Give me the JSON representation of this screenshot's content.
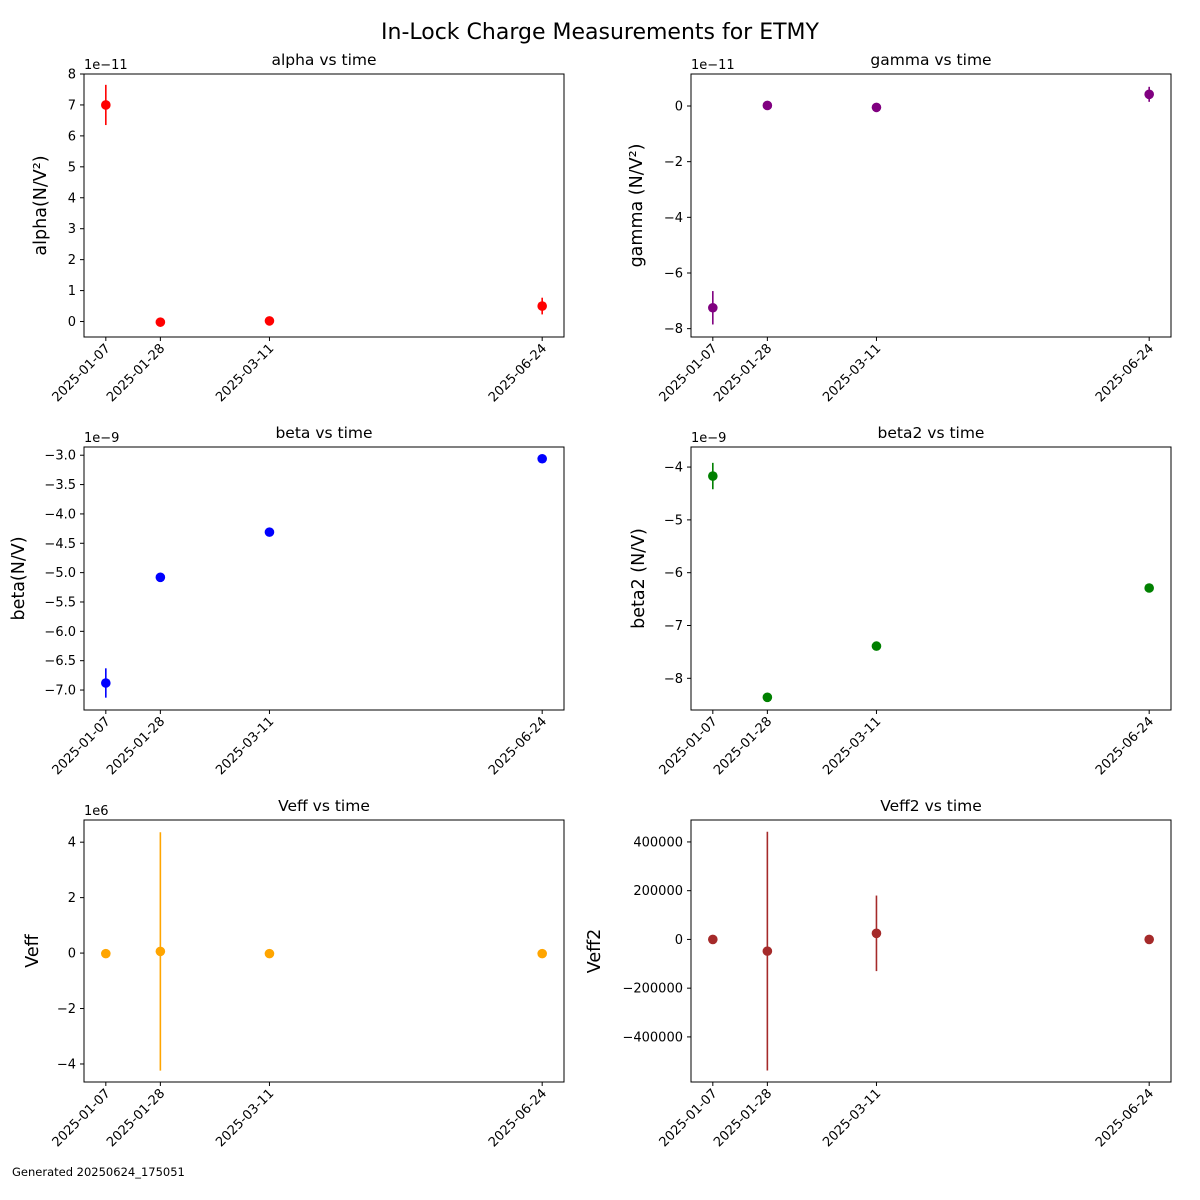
{
  "figure": {
    "title": "In-Lock Charge Measurements for ETMY",
    "footer": "Generated 20250624_175051"
  },
  "chart_data": [
    {
      "type": "scatter",
      "title": "alpha vs time",
      "ylabel": "alpha(N/V²)",
      "color": "#ff0000",
      "offset_label": "1e−11",
      "scale": 1e-11,
      "x": [
        "2025-01-07",
        "2025-01-28",
        "2025-03-11",
        "2025-06-24"
      ],
      "xticks": [
        "2025-01-07",
        "2025-01-28",
        "2025-03-11",
        "2025-06-24"
      ],
      "y": [
        7e-11,
        -2e-13,
        2e-13,
        5e-12
      ],
      "yerr": [
        6.5e-12,
        5e-13,
        5e-13,
        2.7e-12
      ],
      "ylim": [
        -5e-12,
        8e-11
      ],
      "yticks": [
        0,
        1e-11,
        2e-11,
        3e-11,
        4e-11,
        5e-11,
        6e-11,
        7e-11,
        8e-11
      ],
      "ytick_labels": [
        "0",
        "1",
        "2",
        "3",
        "4",
        "5",
        "6",
        "7",
        "8"
      ]
    },
    {
      "type": "scatter",
      "title": "gamma vs time",
      "ylabel": "gamma (N/V²)",
      "color": "#800080",
      "offset_label": "1e−11",
      "scale": 1e-11,
      "x": [
        "2025-01-07",
        "2025-01-28",
        "2025-03-11",
        "2025-06-24"
      ],
      "xticks": [
        "2025-01-07",
        "2025-01-28",
        "2025-03-11",
        "2025-06-24"
      ],
      "y": [
        -7.25e-11,
        2e-13,
        -5e-13,
        4.2e-12
      ],
      "yerr": [
        6e-12,
        5e-13,
        5e-13,
        2.7e-12
      ],
      "ylim": [
        -8.3e-11,
        1.15e-11
      ],
      "yticks": [
        -8e-11,
        -6e-11,
        -4e-11,
        -2e-11,
        0
      ],
      "ytick_labels": [
        "−8",
        "−6",
        "−4",
        "−2",
        "0"
      ]
    },
    {
      "type": "scatter",
      "title": "beta vs time",
      "ylabel": "beta(N/V)",
      "color": "#0000ff",
      "offset_label": "1e−9",
      "scale": 1e-09,
      "x": [
        "2025-01-07",
        "2025-01-28",
        "2025-03-11",
        "2025-06-24"
      ],
      "xticks": [
        "2025-01-07",
        "2025-01-28",
        "2025-03-11",
        "2025-06-24"
      ],
      "y": [
        -6.88e-09,
        -5.08e-09,
        -4.31e-09,
        -3.06e-09
      ],
      "yerr": [
        2.5e-10,
        2e-11,
        2e-11,
        2e-11
      ],
      "ylim": [
        -7.34e-09,
        -2.86e-09
      ],
      "yticks": [
        -7e-09,
        -6.5e-09,
        -6e-09,
        -5.5e-09,
        -5e-09,
        -4.5e-09,
        -4e-09,
        -3.5e-09,
        -3e-09
      ],
      "ytick_labels": [
        "−7.0",
        "−6.5",
        "−6.0",
        "−5.5",
        "−5.0",
        "−4.5",
        "−4.0",
        "−3.5",
        "−3.0"
      ]
    },
    {
      "type": "scatter",
      "title": "beta2 vs time",
      "ylabel": "beta2 (N/V)",
      "color": "#008000",
      "offset_label": "1e−9",
      "scale": 1e-09,
      "x": [
        "2025-01-07",
        "2025-01-28",
        "2025-03-11",
        "2025-06-24"
      ],
      "xticks": [
        "2025-01-07",
        "2025-01-28",
        "2025-03-11",
        "2025-06-24"
      ],
      "y": [
        -4.17e-09,
        -8.36e-09,
        -7.39e-09,
        -6.29e-09
      ],
      "yerr": [
        2.5e-10,
        2e-11,
        2e-11,
        2e-11
      ],
      "ylim": [
        -8.6e-09,
        -3.62e-09
      ],
      "yticks": [
        -8e-09,
        -7e-09,
        -6e-09,
        -5e-09,
        -4e-09
      ],
      "ytick_labels": [
        "−8",
        "−7",
        "−6",
        "−5",
        "−4"
      ]
    },
    {
      "type": "scatter",
      "title": "Veff vs time",
      "ylabel": "Veff",
      "color": "#ffa500",
      "offset_label": "1e6",
      "scale": 1000000.0,
      "x": [
        "2025-01-07",
        "2025-01-28",
        "2025-03-11",
        "2025-06-24"
      ],
      "xticks": [
        "2025-01-07",
        "2025-01-28",
        "2025-03-11",
        "2025-06-24"
      ],
      "y": [
        -20000,
        60000,
        -20000,
        -20000
      ],
      "yerr": [
        0,
        4300000,
        0,
        0
      ],
      "ylim": [
        -4650000.0,
        4800000.0
      ],
      "yticks": [
        -4000000.0,
        -2000000.0,
        0,
        2000000.0,
        4000000.0
      ],
      "ytick_labels": [
        "−4",
        "−2",
        "0",
        "2",
        "4"
      ]
    },
    {
      "type": "scatter",
      "title": "Veff2 vs time",
      "ylabel": "Veff2",
      "color": "#a52a2a",
      "offset_label": "",
      "scale": 1,
      "x": [
        "2025-01-07",
        "2025-01-28",
        "2025-03-11",
        "2025-06-24"
      ],
      "xticks": [
        "2025-01-07",
        "2025-01-28",
        "2025-03-11",
        "2025-06-24"
      ],
      "y": [
        0,
        -48000,
        25000,
        0
      ],
      "yerr": [
        0,
        490000,
        155000,
        0
      ],
      "ylim": [
        -585000,
        490000
      ],
      "yticks": [
        -400000,
        -200000,
        0,
        200000,
        400000
      ],
      "ytick_labels": [
        "−400000",
        "−200000",
        "0",
        "200000",
        "400000"
      ]
    }
  ]
}
